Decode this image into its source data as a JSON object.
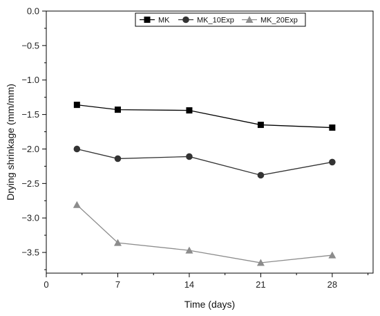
{
  "chart_data": {
    "type": "line",
    "title": "",
    "xlabel": "Time (days)",
    "ylabel": "Drying shrinkage  (mm/mm)",
    "xlim": [
      0,
      32
    ],
    "ylim": [
      -3.8,
      0.0
    ],
    "xticks": [
      0,
      7,
      14,
      21,
      28
    ],
    "yticks": [
      0.0,
      -0.5,
      -1.0,
      -1.5,
      -2.0,
      -2.5,
      -3.0,
      -3.5
    ],
    "ytick_labels": [
      "0.0",
      "−0.5",
      "−1.0",
      "−1.5",
      "−2.0",
      "−2.5",
      "−3.0",
      "−3.5"
    ],
    "grid": false,
    "legend_position": "top-right",
    "x": [
      3,
      7,
      14,
      21,
      28
    ],
    "series": [
      {
        "name": "MK",
        "values": [
          -1.36,
          -1.43,
          -1.44,
          -1.65,
          -1.69
        ],
        "color": "#000000",
        "marker": "square"
      },
      {
        "name": "MK_10Exp",
        "values": [
          -2.0,
          -2.14,
          -2.11,
          -2.38,
          -2.19
        ],
        "color": "#333333",
        "marker": "circle"
      },
      {
        "name": "MK_20Exp",
        "values": [
          -2.81,
          -3.36,
          -3.47,
          -3.65,
          -3.54
        ],
        "color": "#8c8c8c",
        "marker": "triangle"
      }
    ]
  }
}
